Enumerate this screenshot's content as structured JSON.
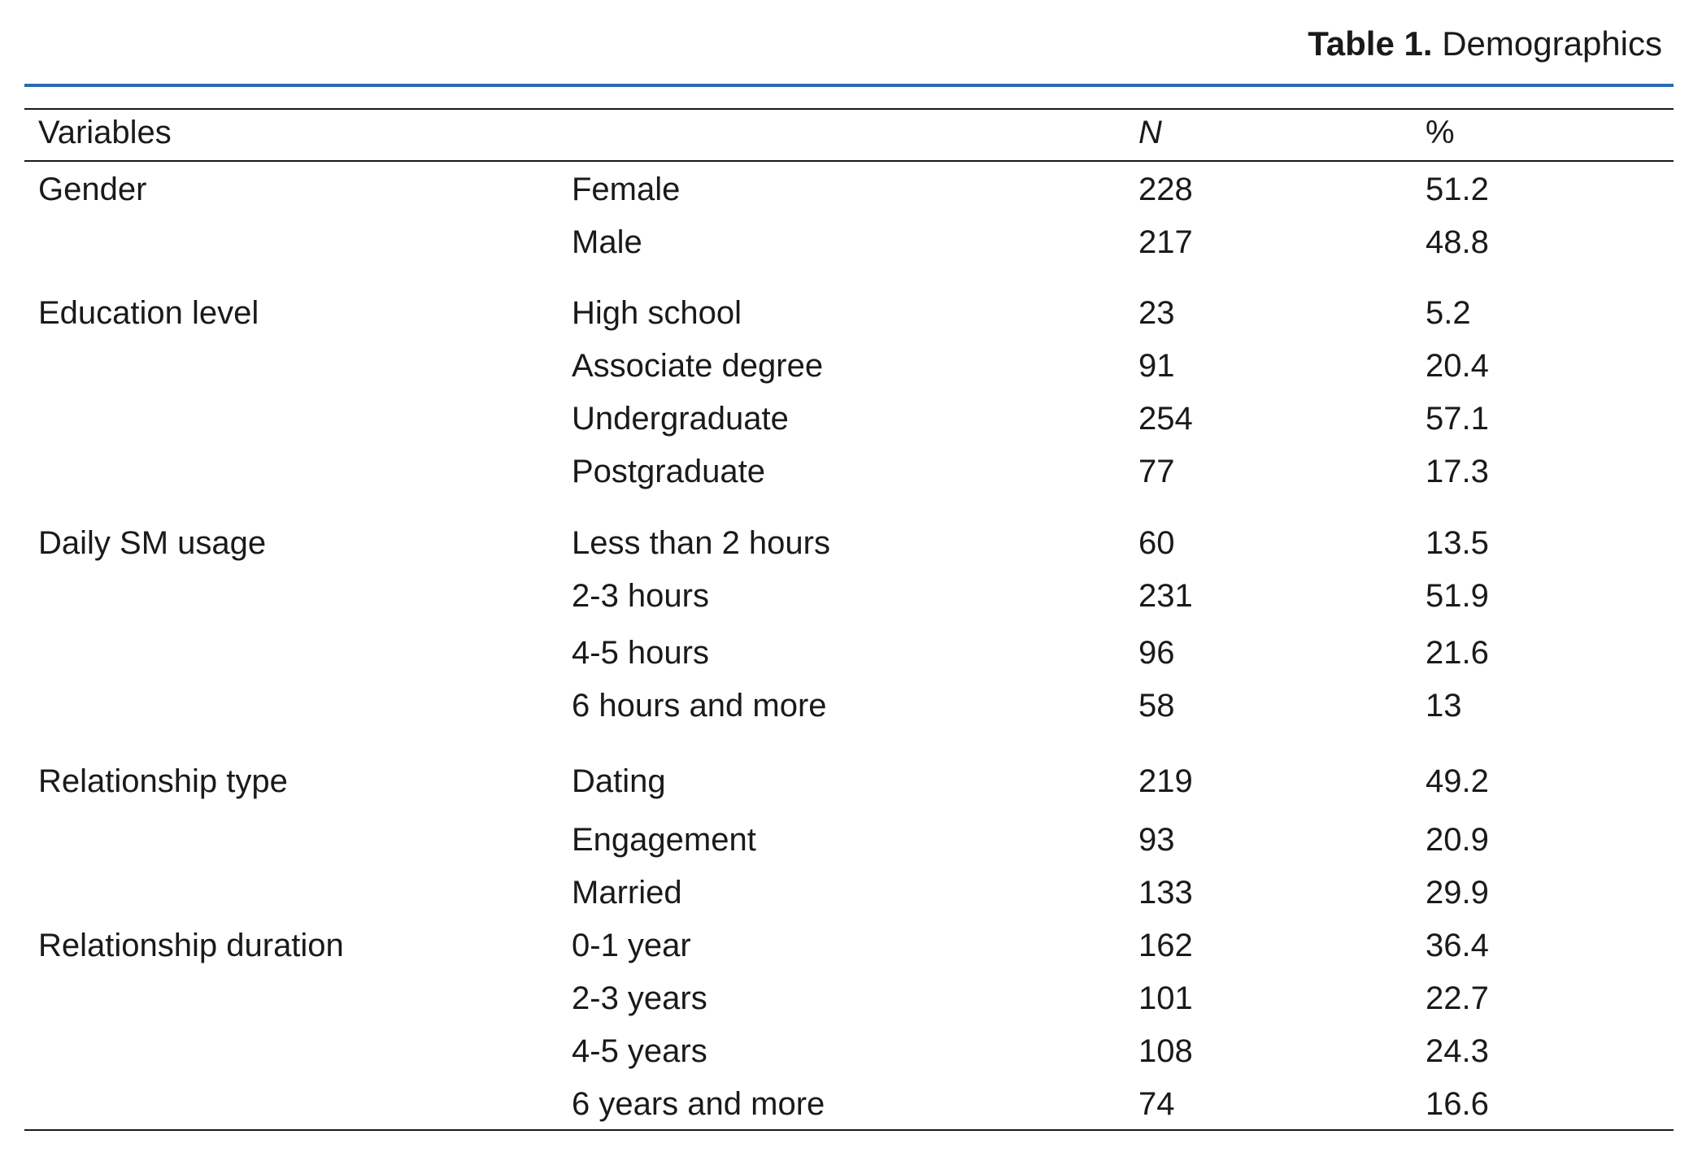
{
  "caption": {
    "label": "Table 1.",
    "title": "Demographics"
  },
  "table": {
    "headers": [
      "Variables",
      "",
      "N",
      "%"
    ],
    "groups": [
      {
        "variable": "Gender",
        "rows": [
          {
            "category": "Female",
            "n": "228",
            "pct": "51.2"
          },
          {
            "category": "Male",
            "n": "217",
            "pct": "48.8"
          }
        ]
      },
      {
        "variable": "Education level",
        "rows": [
          {
            "category": "High school",
            "n": "23",
            "pct": "5.2"
          },
          {
            "category": "Associate degree",
            "n": "91",
            "pct": "20.4"
          },
          {
            "category": "Undergraduate",
            "n": "254",
            "pct": "57.1"
          },
          {
            "category": "Postgraduate",
            "n": "77",
            "pct": "17.3"
          }
        ]
      },
      {
        "variable": "Daily SM usage",
        "rows": [
          {
            "category": "Less than 2 hours",
            "n": "60",
            "pct": "13.5"
          },
          {
            "category": "2-3 hours",
            "n": "231",
            "pct": "51.9"
          },
          {
            "category": "4-5 hours",
            "n": "96",
            "pct": "21.6"
          },
          {
            "category": "6 hours and more",
            "n": "58",
            "pct": "13"
          }
        ]
      },
      {
        "variable": "Relationship type",
        "rows": [
          {
            "category": "Dating",
            "n": "219",
            "pct": "49.2"
          },
          {
            "category": "Engagement",
            "n": "93",
            "pct": "20.9"
          },
          {
            "category": "Married",
            "n": "133",
            "pct": "29.9"
          }
        ]
      },
      {
        "variable": "Relationship duration",
        "rows": [
          {
            "category": "0-1 year",
            "n": "162",
            "pct": "36.4"
          },
          {
            "category": "2-3 years",
            "n": "101",
            "pct": "22.7"
          },
          {
            "category": "4-5 years",
            "n": "108",
            "pct": "24.3"
          },
          {
            "category": "6 years and more",
            "n": "74",
            "pct": "16.6"
          }
        ]
      }
    ]
  },
  "colors": {
    "accent_rule": "#2a6cb0",
    "text": "#1a1a1a"
  }
}
